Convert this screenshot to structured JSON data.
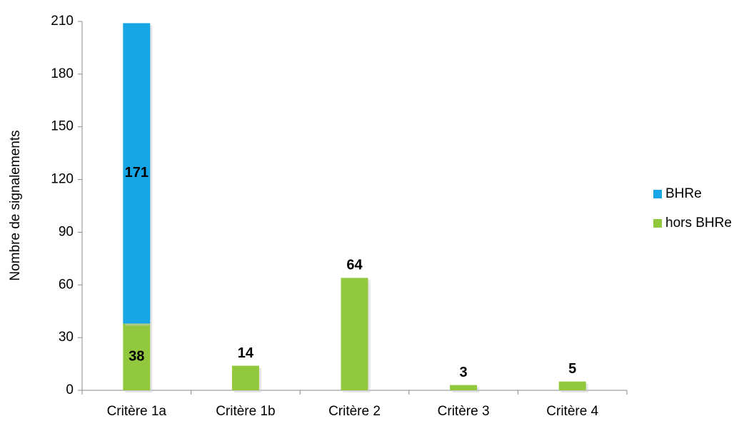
{
  "chart_data": {
    "type": "stacked-bar",
    "y_label": "Nombre de signalements",
    "categories": [
      "Critère 1a",
      "Critère 1b",
      "Critère 2",
      "Critère 3",
      "Critère 4"
    ],
    "series": [
      {
        "name": "hors BHRe",
        "color": "#92c83e",
        "values": [
          38,
          14,
          64,
          3,
          5
        ]
      },
      {
        "name": "BHRe",
        "color": "#16a6e6",
        "values": [
          171,
          null,
          null,
          null,
          null
        ]
      }
    ],
    "ylim": [
      0,
      210
    ],
    "yticks": [
      0,
      30,
      60,
      90,
      120,
      150,
      180,
      210
    ],
    "legend": "right"
  }
}
